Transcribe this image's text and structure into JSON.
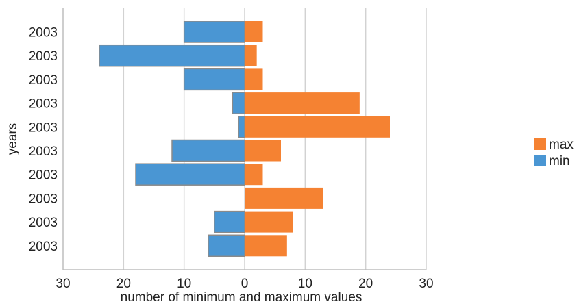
{
  "chart_data": {
    "type": "bar",
    "orientation": "horizontal",
    "diverging": true,
    "categories": [
      "2003",
      "2003",
      "2003",
      "2003",
      "2003",
      "2003",
      "2003",
      "2003",
      "2003",
      "2003"
    ],
    "series": [
      {
        "name": "max",
        "color": "#F58232",
        "values": [
          3,
          2,
          3,
          19,
          24,
          6,
          3,
          13,
          8,
          7
        ]
      },
      {
        "name": "min",
        "color": "#4A96D3",
        "values": [
          10,
          24,
          10,
          2,
          1,
          12,
          18,
          0,
          5,
          6
        ]
      }
    ],
    "xlabel": "number of minimum and maximum values",
    "ylabel": "years",
    "xlim": [
      -30,
      30
    ],
    "x_tick_labels": [
      "30",
      "20",
      "10",
      "0",
      "10",
      "20",
      "30"
    ],
    "grid": "vertical",
    "legend": "right"
  }
}
